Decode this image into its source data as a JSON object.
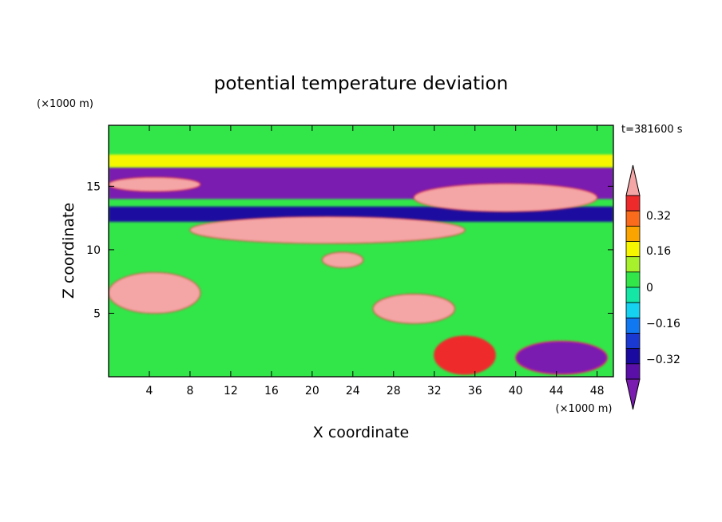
{
  "chart_data": {
    "type": "heatmap",
    "title": "potential temperature deviation",
    "xlabel": "X coordinate",
    "ylabel": "Z coordinate",
    "x_unit": "(×1000 m)",
    "y_unit": "(×1000 m)",
    "time_label": "t=381600 s",
    "xlim": [
      0,
      49.6
    ],
    "ylim": [
      0,
      19.8
    ],
    "x_ticks": [
      4,
      8,
      12,
      16,
      20,
      24,
      28,
      32,
      36,
      40,
      44,
      48
    ],
    "y_ticks": [
      5,
      10,
      15
    ],
    "colorbar": {
      "labeled_levels": [
        "0.32",
        "0.16",
        "0",
        "−0.16",
        "−0.32"
      ],
      "colors_top_to_bottom": [
        "#f4a6a6",
        "#ee2a2a",
        "#fb6b1c",
        "#fba400",
        "#f6f600",
        "#a6f02c",
        "#32e64a",
        "#14e6a6",
        "#14d2f0",
        "#1078f0",
        "#1a38d2",
        "#1a0aa0",
        "#5a10a8",
        "#7a1cb0"
      ],
      "level_values_top_to_bottom": [
        0.48,
        0.4,
        0.32,
        0.24,
        0.16,
        0.08,
        0.0,
        -0.08,
        -0.16,
        -0.24,
        -0.32,
        -0.4,
        -0.48,
        -0.56
      ]
    },
    "background_color": "#32e64a",
    "features": [
      {
        "level": -0.56,
        "shape": "band",
        "x": [
          0,
          49.6
        ],
        "z": [
          14.0,
          16.5
        ]
      },
      {
        "level": -0.4,
        "shape": "band",
        "x": [
          0,
          49.6
        ],
        "z": [
          12.2,
          13.4
        ]
      },
      {
        "level": 0.48,
        "shape": "blob",
        "x": [
          0,
          9
        ],
        "z": [
          14.6,
          15.7
        ]
      },
      {
        "level": 0.48,
        "shape": "blob",
        "x": [
          8,
          35
        ],
        "z": [
          10.5,
          12.6
        ]
      },
      {
        "level": 0.48,
        "shape": "blob",
        "x": [
          30,
          48
        ],
        "z": [
          13.0,
          15.2
        ]
      },
      {
        "level": 0.48,
        "shape": "blob",
        "x": [
          0,
          9
        ],
        "z": [
          5.0,
          8.2
        ]
      },
      {
        "level": 0.48,
        "shape": "blob",
        "x": [
          26,
          34
        ],
        "z": [
          4.2,
          6.5
        ]
      },
      {
        "level": 0.48,
        "shape": "blob",
        "x": [
          21,
          25
        ],
        "z": [
          8.6,
          9.8
        ]
      },
      {
        "level": 0.4,
        "shape": "blob",
        "x": [
          32,
          38
        ],
        "z": [
          0.2,
          3.2
        ]
      },
      {
        "level": -0.56,
        "shape": "blob",
        "x": [
          40,
          49
        ],
        "z": [
          0.2,
          2.8
        ]
      },
      {
        "level": 0.0,
        "shape": "band",
        "x": [
          0,
          49.6
        ],
        "z": [
          17.5,
          19.8
        ]
      },
      {
        "level": 0.16,
        "shape": "band",
        "x": [
          0,
          49.6
        ],
        "z": [
          16.5,
          17.5
        ]
      }
    ]
  }
}
